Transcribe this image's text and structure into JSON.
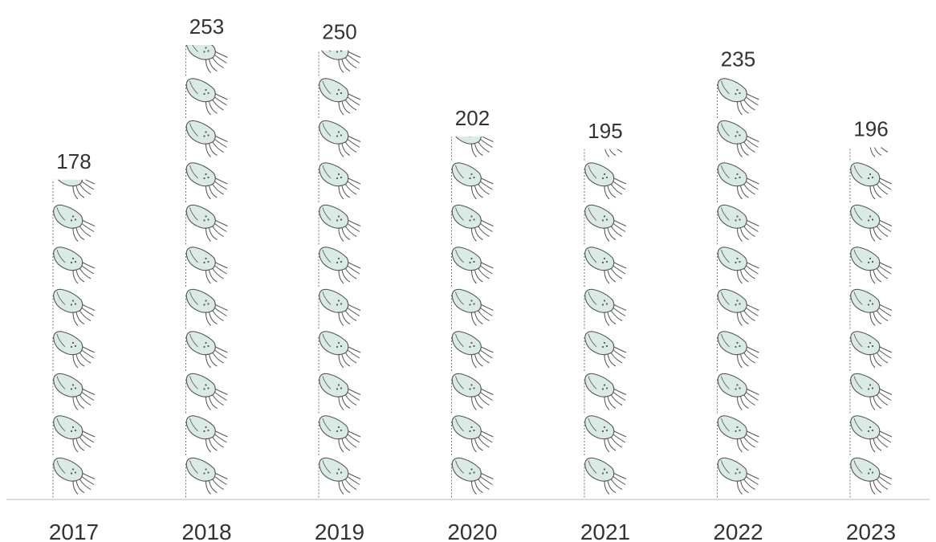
{
  "chart_data": {
    "type": "bar",
    "style": "pictograph",
    "icon": "squid-icon",
    "categories": [
      "2017",
      "2018",
      "2019",
      "2020",
      "2021",
      "2022",
      "2023"
    ],
    "values": [
      178,
      253,
      250,
      202,
      195,
      235,
      196
    ],
    "title": "",
    "xlabel": "",
    "ylabel": "",
    "ylim": [
      0,
      253
    ],
    "data_labels": true,
    "grid": false,
    "legend": "none"
  },
  "colors": {
    "icon_fill": "#d9ebe4",
    "icon_stroke": "#555555",
    "axis": "#d0d0d0",
    "text": "#333333"
  }
}
